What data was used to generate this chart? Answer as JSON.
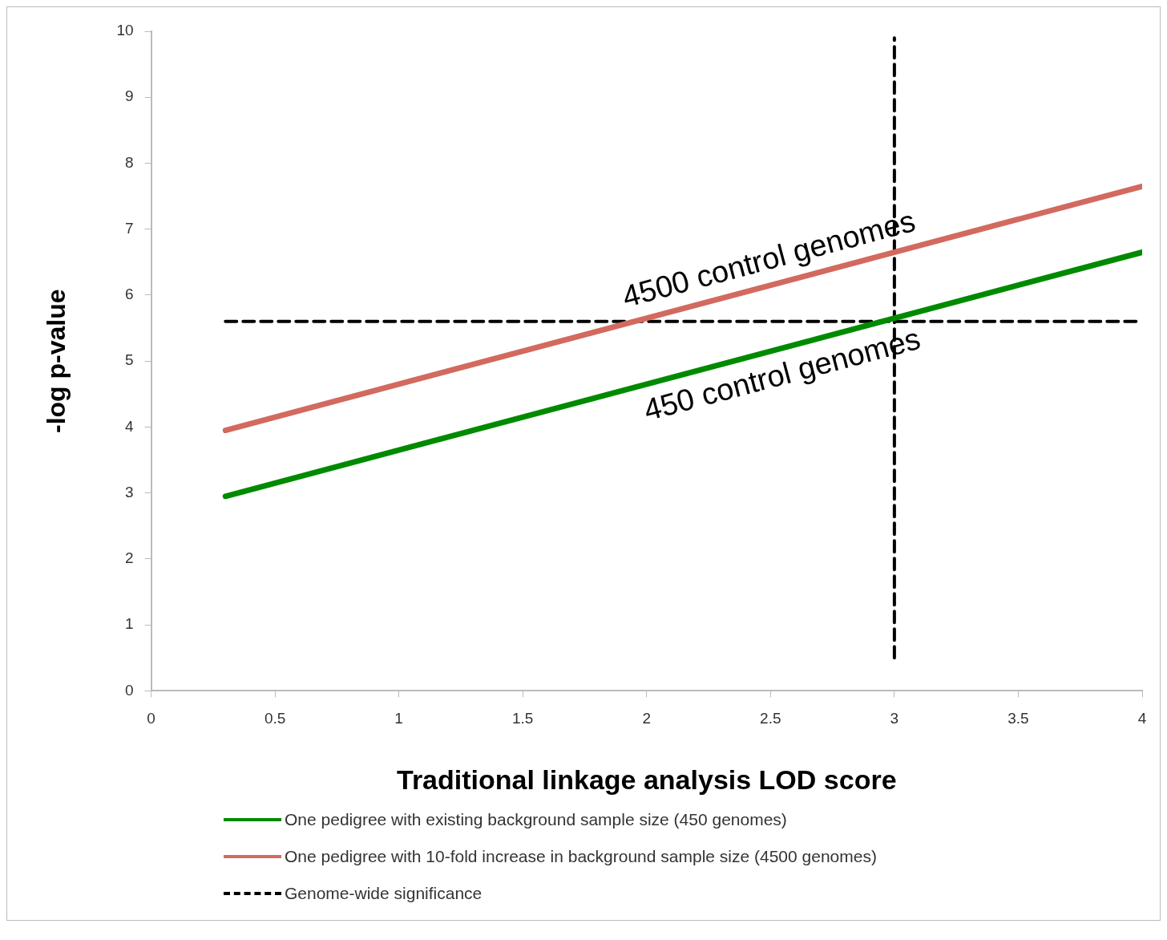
{
  "chart_data": {
    "type": "line",
    "xlabel": "Traditional linkage analysis LOD score",
    "ylabel": "-log p-value",
    "xlim": [
      0,
      4
    ],
    "xticks": [
      0,
      0.5,
      1,
      1.5,
      2,
      2.5,
      3,
      3.5,
      4
    ],
    "ylim": [
      0,
      10
    ],
    "yticks": [
      0,
      1,
      2,
      3,
      4,
      5,
      6,
      7,
      8,
      9,
      10
    ],
    "grid": false,
    "legend": "bottom",
    "marker": "none",
    "series": [
      {
        "name": "One pedigree with existing background sample size (450 genomes)",
        "color": "#008a00",
        "x": [
          0.3,
          4
        ],
        "values": [
          2.95,
          6.65
        ],
        "line_style": "solid"
      },
      {
        "name": "One pedigree with 10-fold increase in background sample size (4500 genomes)",
        "color": "#d26a5f",
        "x": [
          0.3,
          4
        ],
        "values": [
          3.95,
          7.65
        ],
        "line_style": "solid"
      },
      {
        "name": "Genome-wide significance",
        "color": "#000000",
        "x": [
          0.3,
          4
        ],
        "values": [
          5.6,
          5.6
        ],
        "line_style": "dashed"
      },
      {
        "color": "#000000",
        "x": [
          3,
          3
        ],
        "values": [
          0.5,
          9.9
        ],
        "line_style": "dashed"
      }
    ],
    "annotations": [
      "4500 control genomes",
      "450 control genomes"
    ]
  }
}
